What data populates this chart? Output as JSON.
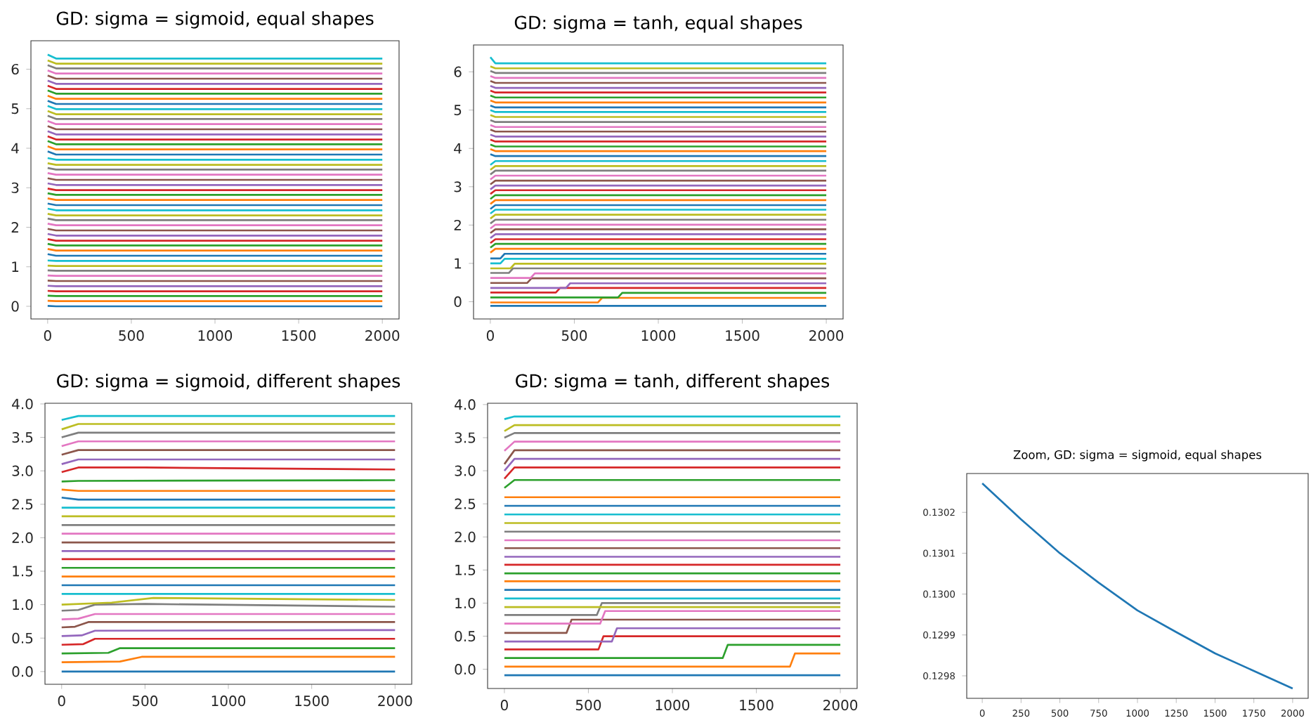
{
  "chart_data": [
    {
      "type": "line",
      "title": "GD: sigma = sigmoid, equal shapes",
      "x": [
        0,
        50,
        2000
      ],
      "xlim": [
        -100,
        2100
      ],
      "ylim": [
        -0.32,
        6.72
      ],
      "xticks": [
        0,
        500,
        1000,
        1500,
        2000
      ],
      "yticks": [
        0,
        1,
        2,
        3,
        4,
        5,
        6
      ],
      "series": [
        {
          "color": "#1f77b4",
          "values": [
            0.01,
            0,
            0
          ]
        },
        {
          "color": "#ff7f0e",
          "values": [
            0.14,
            0.13,
            0.13
          ]
        },
        {
          "color": "#2ca02c",
          "values": [
            0.27,
            0.26,
            0.26
          ]
        },
        {
          "color": "#d62728",
          "values": [
            0.39,
            0.38,
            0.38
          ]
        },
        {
          "color": "#9467bd",
          "values": [
            0.52,
            0.51,
            0.51
          ]
        },
        {
          "color": "#8c564b",
          "values": [
            0.65,
            0.64,
            0.64
          ]
        },
        {
          "color": "#e377c2",
          "values": [
            0.78,
            0.77,
            0.77
          ]
        },
        {
          "color": "#7f7f7f",
          "values": [
            0.91,
            0.9,
            0.9
          ]
        },
        {
          "color": "#bcbd22",
          "values": [
            1.03,
            1.02,
            1.02
          ]
        },
        {
          "color": "#17becf",
          "values": [
            1.16,
            1.15,
            1.15
          ]
        },
        {
          "color": "#1f77b4",
          "values": [
            1.32,
            1.28,
            1.28
          ]
        },
        {
          "color": "#ff7f0e",
          "values": [
            1.45,
            1.41,
            1.41
          ]
        },
        {
          "color": "#2ca02c",
          "values": [
            1.58,
            1.54,
            1.54
          ]
        },
        {
          "color": "#d62728",
          "values": [
            1.7,
            1.66,
            1.66
          ]
        },
        {
          "color": "#9467bd",
          "values": [
            1.83,
            1.79,
            1.79
          ]
        },
        {
          "color": "#8c564b",
          "values": [
            1.96,
            1.92,
            1.92
          ]
        },
        {
          "color": "#e377c2",
          "values": [
            2.09,
            2.05,
            2.05
          ]
        },
        {
          "color": "#7f7f7f",
          "values": [
            2.22,
            2.18,
            2.18
          ]
        },
        {
          "color": "#bcbd22",
          "values": [
            2.34,
            2.3,
            2.3
          ]
        },
        {
          "color": "#17becf",
          "values": [
            2.47,
            2.43,
            2.43
          ]
        },
        {
          "color": "#1f77b4",
          "values": [
            2.6,
            2.56,
            2.56
          ]
        },
        {
          "color": "#ff7f0e",
          "values": [
            2.73,
            2.69,
            2.69
          ]
        },
        {
          "color": "#2ca02c",
          "values": [
            2.86,
            2.82,
            2.82
          ]
        },
        {
          "color": "#d62728",
          "values": [
            2.98,
            2.94,
            2.94
          ]
        },
        {
          "color": "#9467bd",
          "values": [
            3.11,
            3.07,
            3.07
          ]
        },
        {
          "color": "#8c564b",
          "values": [
            3.24,
            3.2,
            3.2
          ]
        },
        {
          "color": "#e377c2",
          "values": [
            3.37,
            3.33,
            3.33
          ]
        },
        {
          "color": "#7f7f7f",
          "values": [
            3.5,
            3.46,
            3.46
          ]
        },
        {
          "color": "#bcbd22",
          "values": [
            3.62,
            3.58,
            3.58
          ]
        },
        {
          "color": "#17becf",
          "values": [
            3.75,
            3.71,
            3.71
          ]
        },
        {
          "color": "#1f77b4",
          "values": [
            3.92,
            3.84,
            3.84
          ]
        },
        {
          "color": "#ff7f0e",
          "values": [
            4.05,
            3.97,
            3.97
          ]
        },
        {
          "color": "#2ca02c",
          "values": [
            4.18,
            4.1,
            4.1
          ]
        },
        {
          "color": "#d62728",
          "values": [
            4.3,
            4.22,
            4.22
          ]
        },
        {
          "color": "#9467bd",
          "values": [
            4.43,
            4.35,
            4.35
          ]
        },
        {
          "color": "#8c564b",
          "values": [
            4.56,
            4.48,
            4.48
          ]
        },
        {
          "color": "#e377c2",
          "values": [
            4.69,
            4.61,
            4.61
          ]
        },
        {
          "color": "#7f7f7f",
          "values": [
            4.82,
            4.74,
            4.74
          ]
        },
        {
          "color": "#bcbd22",
          "values": [
            4.94,
            4.86,
            4.86
          ]
        },
        {
          "color": "#17becf",
          "values": [
            5.07,
            4.99,
            4.99
          ]
        },
        {
          "color": "#1f77b4",
          "values": [
            5.2,
            5.12,
            5.12
          ]
        },
        {
          "color": "#ff7f0e",
          "values": [
            5.33,
            5.25,
            5.25
          ]
        },
        {
          "color": "#2ca02c",
          "values": [
            5.46,
            5.38,
            5.38
          ]
        },
        {
          "color": "#d62728",
          "values": [
            5.58,
            5.5,
            5.5
          ]
        },
        {
          "color": "#9467bd",
          "values": [
            5.71,
            5.63,
            5.63
          ]
        },
        {
          "color": "#8c564b",
          "values": [
            5.84,
            5.76,
            5.76
          ]
        },
        {
          "color": "#e377c2",
          "values": [
            5.97,
            5.89,
            5.89
          ]
        },
        {
          "color": "#7f7f7f",
          "values": [
            6.1,
            6.02,
            6.02
          ]
        },
        {
          "color": "#bcbd22",
          "values": [
            6.22,
            6.14,
            6.14
          ]
        },
        {
          "color": "#17becf",
          "values": [
            6.37,
            6.27,
            6.27
          ]
        }
      ]
    },
    {
      "type": "line",
      "title": "GD: sigma = tanh, equal shapes",
      "x": [
        0,
        30,
        2000
      ],
      "xlim": [
        -100,
        2100
      ],
      "ylim": [
        -0.45,
        6.7
      ],
      "xticks": [
        0,
        500,
        1000,
        1500,
        2000
      ],
      "yticks": [
        0,
        1,
        2,
        3,
        4,
        5,
        6
      ],
      "series": [
        {
          "color": "#1f77b4",
          "values": [
            -0.11,
            -0.11,
            -0.11
          ]
        },
        {
          "color": "#ff7f0e",
          "x": [
            0,
            640,
            665,
            2000
          ],
          "values": [
            -0.02,
            -0.02,
            0.1,
            0.1
          ]
        },
        {
          "color": "#2ca02c",
          "x": [
            0,
            760,
            785,
            2000
          ],
          "values": [
            0.11,
            0.11,
            0.23,
            0.23
          ]
        },
        {
          "color": "#d62728",
          "x": [
            0,
            390,
            415,
            2000
          ],
          "values": [
            0.24,
            0.24,
            0.36,
            0.36
          ]
        },
        {
          "color": "#9467bd",
          "x": [
            0,
            450,
            475,
            2000
          ],
          "values": [
            0.36,
            0.36,
            0.48,
            0.48
          ]
        },
        {
          "color": "#8c564b",
          "x": [
            0,
            220,
            245,
            2000
          ],
          "values": [
            0.49,
            0.49,
            0.61,
            0.61
          ]
        },
        {
          "color": "#e377c2",
          "x": [
            0,
            240,
            265,
            2000
          ],
          "values": [
            0.62,
            0.62,
            0.74,
            0.74
          ]
        },
        {
          "color": "#7f7f7f",
          "x": [
            0,
            110,
            135,
            2000
          ],
          "values": [
            0.75,
            0.75,
            0.87,
            0.87
          ]
        },
        {
          "color": "#bcbd22",
          "x": [
            0,
            120,
            145,
            2000
          ],
          "values": [
            0.87,
            0.87,
            0.99,
            0.99
          ]
        },
        {
          "color": "#17becf",
          "x": [
            0,
            60,
            85,
            2000
          ],
          "values": [
            1.0,
            1.0,
            1.12,
            1.12
          ]
        },
        {
          "color": "#1f77b4",
          "x": [
            0,
            60,
            85,
            2000
          ],
          "values": [
            1.13,
            1.13,
            1.25,
            1.25
          ]
        },
        {
          "color": "#ff7f0e",
          "values": [
            1.28,
            1.38,
            1.38
          ]
        },
        {
          "color": "#2ca02c",
          "values": [
            1.41,
            1.51,
            1.51
          ]
        },
        {
          "color": "#d62728",
          "values": [
            1.53,
            1.63,
            1.63
          ]
        },
        {
          "color": "#9467bd",
          "values": [
            1.66,
            1.76,
            1.76
          ]
        },
        {
          "color": "#8c564b",
          "values": [
            1.79,
            1.89,
            1.89
          ]
        },
        {
          "color": "#e377c2",
          "values": [
            1.91,
            2.01,
            2.01
          ]
        },
        {
          "color": "#7f7f7f",
          "values": [
            2.04,
            2.14,
            2.14
          ]
        },
        {
          "color": "#bcbd22",
          "values": [
            2.17,
            2.27,
            2.27
          ]
        },
        {
          "color": "#17becf",
          "values": [
            2.3,
            2.4,
            2.4
          ]
        },
        {
          "color": "#1f77b4",
          "values": [
            2.42,
            2.52,
            2.52
          ]
        },
        {
          "color": "#ff7f0e",
          "values": [
            2.55,
            2.65,
            2.65
          ]
        },
        {
          "color": "#2ca02c",
          "values": [
            2.68,
            2.78,
            2.78
          ]
        },
        {
          "color": "#d62728",
          "values": [
            2.81,
            2.91,
            2.91
          ]
        },
        {
          "color": "#9467bd",
          "values": [
            2.93,
            3.03,
            3.03
          ]
        },
        {
          "color": "#8c564b",
          "values": [
            3.06,
            3.16,
            3.16
          ]
        },
        {
          "color": "#e377c2",
          "values": [
            3.19,
            3.29,
            3.29
          ]
        },
        {
          "color": "#7f7f7f",
          "values": [
            3.32,
            3.42,
            3.42
          ]
        },
        {
          "color": "#bcbd22",
          "values": [
            3.44,
            3.54,
            3.54
          ]
        },
        {
          "color": "#17becf",
          "values": [
            3.57,
            3.67,
            3.67
          ]
        },
        {
          "color": "#1f77b4",
          "values": [
            3.85,
            3.8,
            3.8
          ]
        },
        {
          "color": "#ff7f0e",
          "values": [
            3.98,
            3.93,
            3.93
          ]
        },
        {
          "color": "#2ca02c",
          "values": [
            4.1,
            4.05,
            4.05
          ]
        },
        {
          "color": "#d62728",
          "values": [
            4.23,
            4.18,
            4.18
          ]
        },
        {
          "color": "#9467bd",
          "values": [
            4.36,
            4.31,
            4.31
          ]
        },
        {
          "color": "#8c564b",
          "values": [
            4.49,
            4.44,
            4.44
          ]
        },
        {
          "color": "#e377c2",
          "values": [
            4.61,
            4.56,
            4.56
          ]
        },
        {
          "color": "#7f7f7f",
          "values": [
            4.74,
            4.69,
            4.69
          ]
        },
        {
          "color": "#bcbd22",
          "values": [
            4.87,
            4.82,
            4.82
          ]
        },
        {
          "color": "#17becf",
          "values": [
            5.0,
            4.95,
            4.95
          ]
        },
        {
          "color": "#1f77b4",
          "values": [
            5.12,
            5.07,
            5.07
          ]
        },
        {
          "color": "#ff7f0e",
          "values": [
            5.25,
            5.2,
            5.2
          ]
        },
        {
          "color": "#2ca02c",
          "values": [
            5.38,
            5.33,
            5.33
          ]
        },
        {
          "color": "#d62728",
          "values": [
            5.51,
            5.46,
            5.46
          ]
        },
        {
          "color": "#9467bd",
          "values": [
            5.63,
            5.58,
            5.58
          ]
        },
        {
          "color": "#8c564b",
          "values": [
            5.76,
            5.71,
            5.71
          ]
        },
        {
          "color": "#e377c2",
          "values": [
            5.89,
            5.84,
            5.84
          ]
        },
        {
          "color": "#7f7f7f",
          "values": [
            6.02,
            5.97,
            5.97
          ]
        },
        {
          "color": "#bcbd22",
          "values": [
            6.14,
            6.09,
            6.09
          ]
        },
        {
          "color": "#17becf",
          "values": [
            6.38,
            6.22,
            6.22
          ]
        }
      ]
    },
    {
      "type": "line",
      "title": "GD: sigma = sigmoid, different shapes",
      "x": [
        0,
        100,
        2000
      ],
      "xlim": [
        -100,
        2100
      ],
      "ylim": [
        -0.19,
        4.01
      ],
      "xticks": [
        0,
        500,
        1000,
        1500,
        2000
      ],
      "yticks": [
        {
          "value": 0,
          "label": "0.0"
        },
        0.5,
        {
          "value": 1,
          "label": "1.0"
        },
        1.5,
        {
          "value": 2,
          "label": "2.0"
        },
        2.5,
        {
          "value": 3,
          "label": "3.0"
        },
        3.5,
        {
          "value": 4,
          "label": "4.0"
        }
      ],
      "series": [
        {
          "color": "#1f77b4",
          "values": [
            0,
            0,
            0
          ]
        },
        {
          "color": "#ff7f0e",
          "x": [
            0,
            350,
            480,
            2000
          ],
          "values": [
            0.14,
            0.15,
            0.22,
            0.22
          ]
        },
        {
          "color": "#2ca02c",
          "x": [
            0,
            280,
            350,
            2000
          ],
          "values": [
            0.27,
            0.28,
            0.35,
            0.35
          ]
        },
        {
          "color": "#d62728",
          "x": [
            0,
            130,
            200,
            2000
          ],
          "values": [
            0.4,
            0.41,
            0.49,
            0.49
          ]
        },
        {
          "color": "#9467bd",
          "x": [
            0,
            120,
            200,
            2000
          ],
          "values": [
            0.53,
            0.54,
            0.61,
            0.62
          ]
        },
        {
          "color": "#8c564b",
          "x": [
            0,
            80,
            160,
            2000
          ],
          "values": [
            0.66,
            0.67,
            0.74,
            0.74
          ]
        },
        {
          "color": "#e377c2",
          "x": [
            0,
            100,
            200,
            2000
          ],
          "values": [
            0.78,
            0.79,
            0.86,
            0.86
          ]
        },
        {
          "color": "#7f7f7f",
          "x": [
            0,
            100,
            200,
            500,
            2000
          ],
          "values": [
            0.91,
            0.92,
            1.0,
            1.01,
            0.97
          ]
        },
        {
          "color": "#bcbd22",
          "x": [
            0,
            300,
            550,
            2000
          ],
          "values": [
            1.0,
            1.03,
            1.1,
            1.07
          ]
        },
        {
          "color": "#17becf",
          "values": [
            1.16,
            1.16,
            1.16
          ]
        },
        {
          "color": "#1f77b4",
          "values": [
            1.29,
            1.29,
            1.29
          ]
        },
        {
          "color": "#ff7f0e",
          "values": [
            1.42,
            1.42,
            1.42
          ]
        },
        {
          "color": "#2ca02c",
          "values": [
            1.55,
            1.55,
            1.55
          ]
        },
        {
          "color": "#d62728",
          "values": [
            1.68,
            1.68,
            1.68
          ]
        },
        {
          "color": "#9467bd",
          "values": [
            1.8,
            1.8,
            1.8
          ]
        },
        {
          "color": "#8c564b",
          "values": [
            1.93,
            1.93,
            1.93
          ]
        },
        {
          "color": "#e377c2",
          "values": [
            2.06,
            2.06,
            2.06
          ]
        },
        {
          "color": "#7f7f7f",
          "values": [
            2.19,
            2.19,
            2.19
          ]
        },
        {
          "color": "#bcbd22",
          "values": [
            2.32,
            2.32,
            2.32
          ]
        },
        {
          "color": "#17becf",
          "values": [
            2.45,
            2.45,
            2.45
          ]
        },
        {
          "color": "#1f77b4",
          "values": [
            2.6,
            2.57,
            2.57
          ]
        },
        {
          "color": "#ff7f0e",
          "values": [
            2.72,
            2.7,
            2.7
          ]
        },
        {
          "color": "#2ca02c",
          "values": [
            2.84,
            2.85,
            2.86
          ]
        },
        {
          "color": "#d62728",
          "x": [
            0,
            100,
            500,
            2000
          ],
          "values": [
            2.98,
            3.05,
            3.05,
            3.02
          ]
        },
        {
          "color": "#9467bd",
          "values": [
            3.1,
            3.17,
            3.17
          ]
        },
        {
          "color": "#8c564b",
          "values": [
            3.24,
            3.31,
            3.31
          ]
        },
        {
          "color": "#e377c2",
          "values": [
            3.37,
            3.44,
            3.44
          ]
        },
        {
          "color": "#7f7f7f",
          "values": [
            3.5,
            3.57,
            3.57
          ]
        },
        {
          "color": "#bcbd22",
          "values": [
            3.62,
            3.7,
            3.7
          ]
        },
        {
          "color": "#17becf",
          "values": [
            3.76,
            3.82,
            3.82
          ]
        }
      ]
    },
    {
      "type": "line",
      "title": "GD: sigma = tanh, different shapes",
      "x": [
        0,
        60,
        2000
      ],
      "xlim": [
        -100,
        2100
      ],
      "ylim": [
        -0.29,
        4.02
      ],
      "xticks": [
        0,
        500,
        1000,
        1500,
        2000
      ],
      "yticks": [
        {
          "value": 0,
          "label": "0.0"
        },
        0.5,
        {
          "value": 1,
          "label": "1.0"
        },
        1.5,
        {
          "value": 2,
          "label": "2.0"
        },
        2.5,
        {
          "value": 3,
          "label": "3.0"
        },
        3.5,
        {
          "value": 4,
          "label": "4.0"
        }
      ],
      "series": [
        {
          "color": "#1f77b4",
          "values": [
            -0.09,
            -0.09,
            -0.09
          ]
        },
        {
          "color": "#ff7f0e",
          "x": [
            0,
            1700,
            1730,
            2000
          ],
          "values": [
            0.04,
            0.04,
            0.24,
            0.24
          ]
        },
        {
          "color": "#2ca02c",
          "x": [
            0,
            1300,
            1330,
            2000
          ],
          "values": [
            0.17,
            0.17,
            0.37,
            0.37
          ]
        },
        {
          "color": "#d62728",
          "x": [
            0,
            560,
            590,
            2000
          ],
          "values": [
            0.3,
            0.3,
            0.5,
            0.5
          ]
        },
        {
          "color": "#9467bd",
          "x": [
            0,
            640,
            670,
            2000
          ],
          "values": [
            0.42,
            0.42,
            0.62,
            0.62
          ]
        },
        {
          "color": "#8c564b",
          "x": [
            0,
            370,
            400,
            2000
          ],
          "values": [
            0.55,
            0.55,
            0.75,
            0.75
          ]
        },
        {
          "color": "#e377c2",
          "x": [
            0,
            570,
            600,
            2000
          ],
          "values": [
            0.69,
            0.69,
            0.88,
            0.88
          ]
        },
        {
          "color": "#7f7f7f",
          "x": [
            0,
            550,
            580,
            2000
          ],
          "values": [
            0.82,
            0.82,
            1.0,
            1.0
          ]
        },
        {
          "color": "#bcbd22",
          "values": [
            0.94,
            0.94,
            0.94
          ]
        },
        {
          "color": "#17becf",
          "values": [
            1.07,
            1.07,
            1.07
          ]
        },
        {
          "color": "#1f77b4",
          "values": [
            1.2,
            1.2,
            1.2
          ]
        },
        {
          "color": "#ff7f0e",
          "values": [
            1.33,
            1.33,
            1.33
          ]
        },
        {
          "color": "#2ca02c",
          "values": [
            1.45,
            1.45,
            1.45
          ]
        },
        {
          "color": "#d62728",
          "values": [
            1.58,
            1.58,
            1.58
          ]
        },
        {
          "color": "#9467bd",
          "values": [
            1.7,
            1.7,
            1.7
          ]
        },
        {
          "color": "#8c564b",
          "values": [
            1.83,
            1.83,
            1.83
          ]
        },
        {
          "color": "#e377c2",
          "values": [
            1.95,
            1.95,
            1.95
          ]
        },
        {
          "color": "#7f7f7f",
          "values": [
            2.08,
            2.08,
            2.08
          ]
        },
        {
          "color": "#bcbd22",
          "values": [
            2.21,
            2.21,
            2.21
          ]
        },
        {
          "color": "#17becf",
          "values": [
            2.34,
            2.34,
            2.34
          ]
        },
        {
          "color": "#1f77b4",
          "values": [
            2.47,
            2.47,
            2.47
          ]
        },
        {
          "color": "#ff7f0e",
          "values": [
            2.6,
            2.6,
            2.6
          ]
        },
        {
          "color": "#2ca02c",
          "values": [
            2.74,
            2.86,
            2.86
          ]
        },
        {
          "color": "#d62728",
          "values": [
            2.88,
            3.05,
            3.05
          ]
        },
        {
          "color": "#9467bd",
          "values": [
            3.0,
            3.18,
            3.18
          ]
        },
        {
          "color": "#8c564b",
          "values": [
            3.1,
            3.31,
            3.31
          ]
        },
        {
          "color": "#e377c2",
          "values": [
            3.3,
            3.44,
            3.44
          ]
        },
        {
          "color": "#7f7f7f",
          "values": [
            3.5,
            3.57,
            3.57
          ]
        },
        {
          "color": "#bcbd22",
          "values": [
            3.6,
            3.69,
            3.69
          ]
        },
        {
          "color": "#17becf",
          "values": [
            3.78,
            3.82,
            3.82
          ]
        }
      ]
    },
    {
      "type": "line",
      "title": "Zoom, GD: sigma = sigmoid, equal shapes",
      "x": [
        0,
        250,
        500,
        750,
        1000,
        1250,
        1500,
        1750,
        2000
      ],
      "xlim": [
        -100,
        2100
      ],
      "ylim": [
        0.129745,
        0.130295
      ],
      "xticks": [
        0,
        250,
        500,
        750,
        1000,
        1250,
        1500,
        1750,
        2000
      ],
      "yticks": [
        0.1298,
        0.1299,
        {
          "value": 0.13,
          "label": "0.1300"
        },
        0.1301,
        0.1302
      ],
      "series": [
        {
          "color": "#1f77b4",
          "values": [
            0.130271,
            0.130183,
            0.1301,
            0.130028,
            0.12996,
            0.129907,
            0.129855,
            0.129812,
            0.129769
          ]
        }
      ]
    }
  ]
}
